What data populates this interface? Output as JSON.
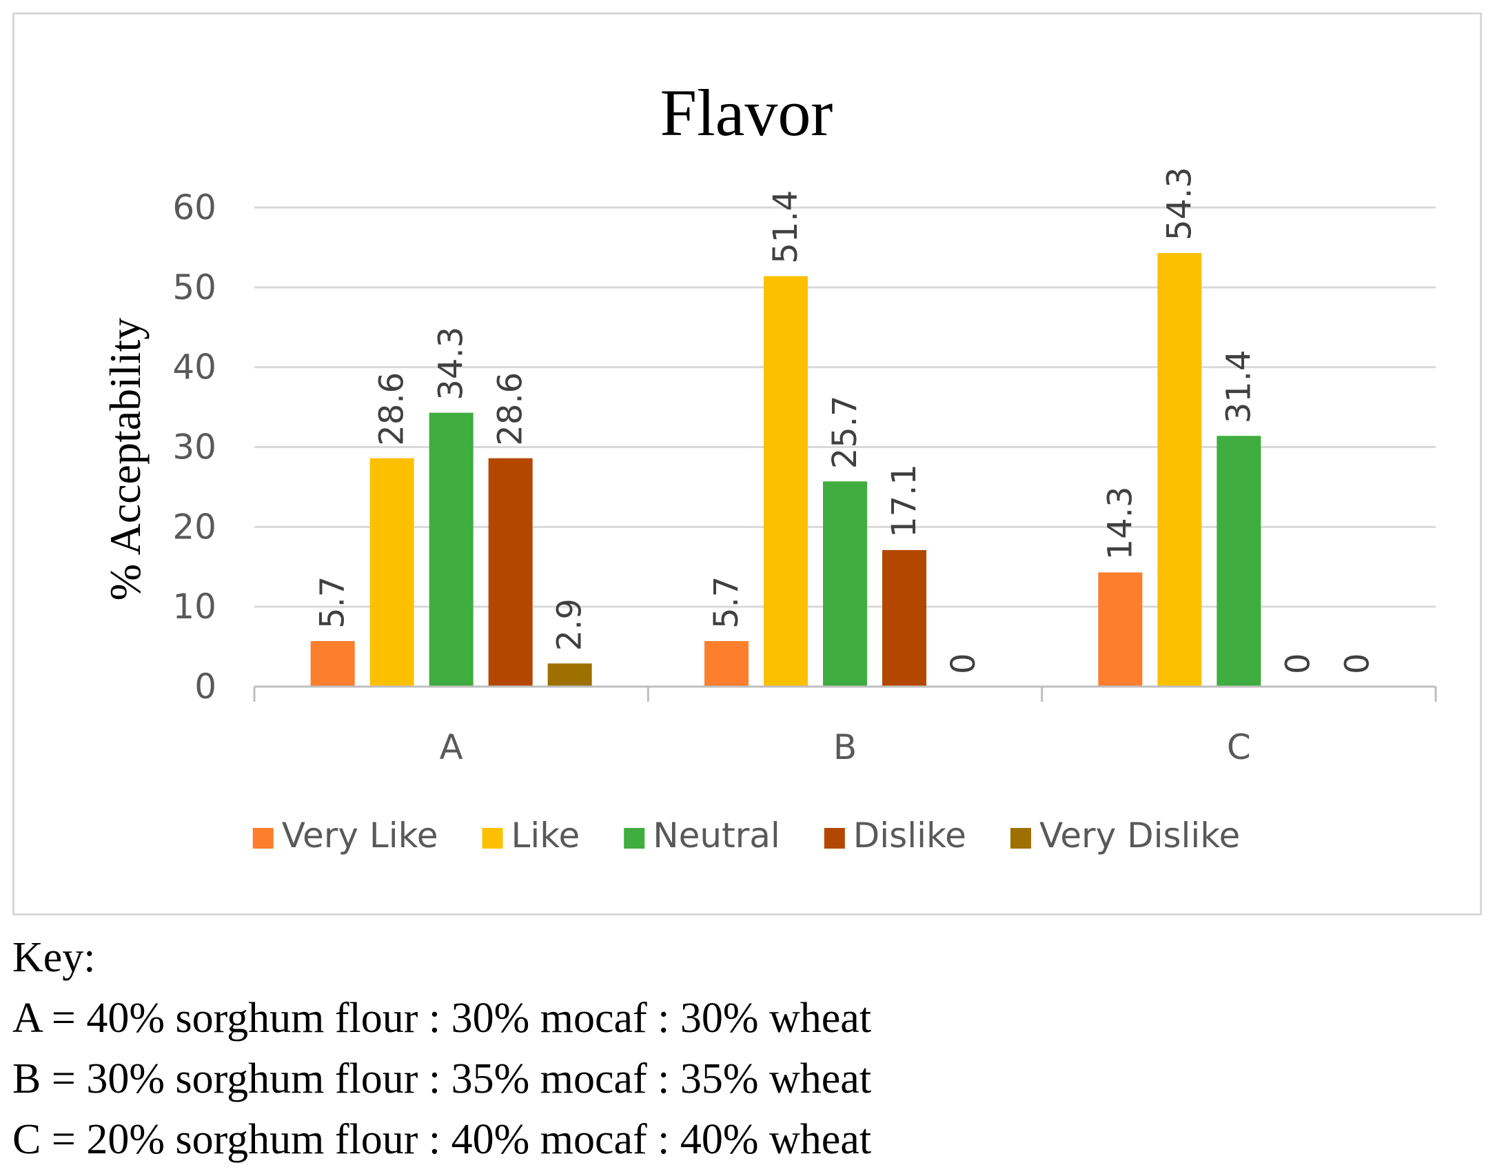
{
  "chart_data": {
    "type": "bar",
    "title": "Flavor",
    "xlabel": "",
    "ylabel": "% Acceptability",
    "ylim": [
      0,
      60
    ],
    "yticks": [
      "0",
      "10",
      "20",
      "30",
      "40",
      "50",
      "60"
    ],
    "grid": true,
    "legend_position": "bottom",
    "categories": [
      "A",
      "B",
      "C"
    ],
    "series": [
      {
        "name": "Very Like",
        "color": "#fd7e2c",
        "values": [
          5.7,
          5.7,
          14.3
        ],
        "labels": [
          "5.7",
          "5.7",
          "14.3"
        ]
      },
      {
        "name": "Like",
        "color": "#fdc000",
        "values": [
          28.6,
          51.4,
          54.3
        ],
        "labels": [
          "28.6",
          "51.4",
          "54.3"
        ]
      },
      {
        "name": "Neutral",
        "color": "#3fad3f",
        "values": [
          34.3,
          25.7,
          31.4
        ],
        "labels": [
          "34.3",
          "25.7",
          "31.4"
        ]
      },
      {
        "name": "Dislike",
        "color": "#b34700",
        "values": [
          28.6,
          17.1,
          0
        ],
        "labels": [
          "28.6",
          "17.1",
          "0"
        ]
      },
      {
        "name": "Very Dislike",
        "color": "#9e7000",
        "values": [
          2.9,
          0,
          0
        ],
        "labels": [
          "2.9",
          "0",
          "0"
        ]
      }
    ]
  },
  "key": {
    "title": "Key:",
    "lines": [
      "A = 40% sorghum flour : 30% mocaf : 30% wheat",
      "B = 30% sorghum flour : 35% mocaf : 35% wheat",
      "C = 20% sorghum flour : 40% mocaf : 40% wheat"
    ]
  }
}
